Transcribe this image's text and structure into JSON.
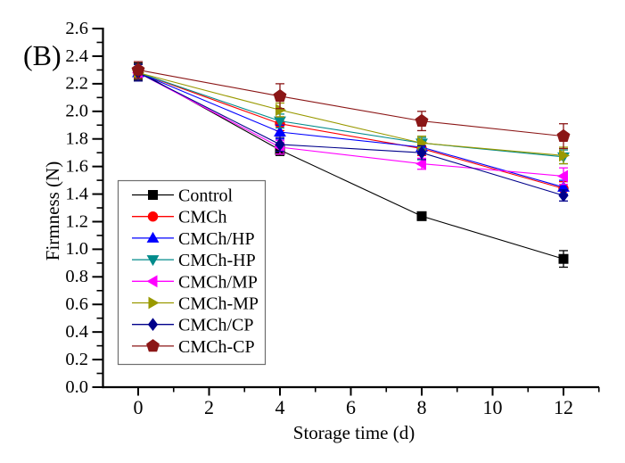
{
  "panel_label": "(B)",
  "chart_data": {
    "type": "line",
    "title": "",
    "xlabel": "Storage time (d)",
    "ylabel": "Firmness (N)",
    "x": [
      0,
      4,
      8,
      12
    ],
    "xlim": [
      -1.1,
      13.0
    ],
    "ylim": [
      0.0,
      2.6
    ],
    "x_major_ticks": [
      0,
      2,
      4,
      6,
      8,
      10,
      12
    ],
    "x_minor_ticks": [
      -1,
      1,
      3,
      5,
      7,
      9,
      11,
      13
    ],
    "y_major_step": 0.2,
    "y_minor_step": 0.1,
    "y_tick_decimals": 1,
    "grid": false,
    "legend_position": "inside-left-middle",
    "series": [
      {
        "name": "Control",
        "marker": "square",
        "color": "#000000",
        "values": [
          2.29,
          1.72,
          1.24,
          0.93
        ],
        "errors": [
          0.06,
          0.04,
          0.03,
          0.06
        ]
      },
      {
        "name": "CMCh",
        "marker": "circle",
        "color": "#ff0000",
        "values": [
          2.28,
          1.91,
          1.73,
          1.44
        ],
        "errors": [
          0.06,
          0.05,
          0.05,
          0.05
        ]
      },
      {
        "name": "CMCh/HP",
        "marker": "triangle-up",
        "color": "#0000ff",
        "values": [
          2.28,
          1.85,
          1.74,
          1.45
        ],
        "errors": [
          0.06,
          0.05,
          0.05,
          0.05
        ]
      },
      {
        "name": "CMCh-HP",
        "marker": "triangle-down",
        "color": "#008b8b",
        "values": [
          2.28,
          1.93,
          1.77,
          1.67
        ],
        "errors": [
          0.06,
          0.05,
          0.04,
          0.05
        ]
      },
      {
        "name": "CMCh/MP",
        "marker": "triangle-left",
        "color": "#ff00ff",
        "values": [
          2.28,
          1.74,
          1.62,
          1.53
        ],
        "errors": [
          0.06,
          0.05,
          0.04,
          0.06
        ]
      },
      {
        "name": "CMCh-MP",
        "marker": "triangle-right",
        "color": "#999900",
        "values": [
          2.28,
          2.01,
          1.77,
          1.68
        ],
        "errors": [
          0.06,
          0.05,
          0.05,
          0.06
        ]
      },
      {
        "name": "CMCh/CP",
        "marker": "diamond",
        "color": "#00008b",
        "values": [
          2.28,
          1.76,
          1.7,
          1.39
        ],
        "errors": [
          0.06,
          0.05,
          0.05,
          0.04
        ]
      },
      {
        "name": "CMCh-CP",
        "marker": "pentagon",
        "color": "#8b1616",
        "values": [
          2.3,
          2.11,
          1.93,
          1.82
        ],
        "errors": [
          0.06,
          0.09,
          0.07,
          0.09
        ]
      }
    ]
  }
}
